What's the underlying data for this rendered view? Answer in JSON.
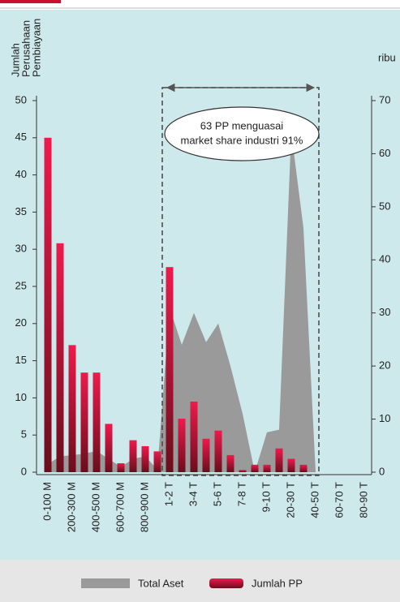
{
  "chart_data": {
    "type": "combo",
    "y_label": [
      "Jumlah",
      "Perusahaan",
      "Pembiayaan"
    ],
    "y2_label": "ribu",
    "categories": [
      "0-100 M",
      null,
      "200-300 M",
      null,
      "400-500 M",
      null,
      "600-700 M",
      null,
      "800-900 M",
      null,
      "1-2 T",
      null,
      "3-4 T",
      null,
      "5-6 T",
      null,
      "7-8 T",
      null,
      "9-10 T",
      null,
      "20-30 T",
      null,
      "40-50 T",
      null,
      "60-70 T",
      null,
      "80-90 T"
    ],
    "series": [
      {
        "name": "Total Aset",
        "type": "area",
        "axis": "y2",
        "color": "#9a9a9a",
        "values": [
          1.5,
          3,
          3.2,
          3.5,
          4,
          2.5,
          1,
          2.5,
          3,
          0.5,
          31,
          24,
          30,
          24.5,
          28,
          20,
          11,
          0,
          7.5,
          8,
          64,
          46,
          0,
          0,
          0,
          0,
          0
        ]
      },
      {
        "name": "Jumlah PP",
        "type": "bar",
        "color": "#d0123d",
        "values": [
          45,
          30.8,
          17.1,
          13.4,
          13.4,
          6.5,
          1.2,
          4.3,
          3.5,
          2.8,
          27.6,
          7.2,
          9.5,
          4.5,
          5.6,
          2.3,
          0.3,
          1,
          1,
          3.2,
          1.8,
          1,
          0,
          0,
          0,
          0,
          0
        ]
      }
    ],
    "ylim": [
      0,
      50
    ],
    "yticks": [
      0,
      5,
      10,
      15,
      20,
      25,
      30,
      35,
      40,
      45,
      50
    ],
    "y2lim": [
      0,
      70
    ],
    "y2ticks": [
      0,
      10,
      20,
      30,
      40,
      50,
      60,
      70
    ],
    "annotation": [
      "63 PP menguasai",
      "market share industri 91%"
    ]
  }
}
